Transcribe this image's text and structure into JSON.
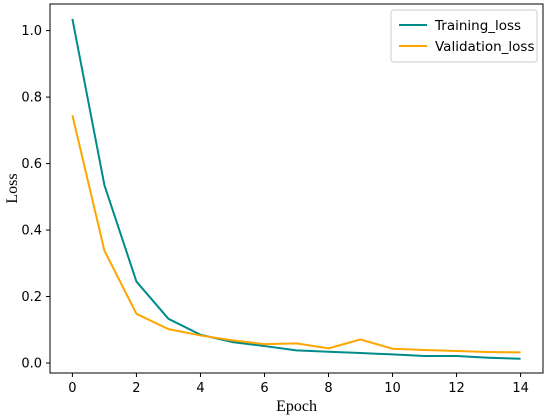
{
  "chart_data": {
    "type": "line",
    "title": "",
    "xlabel": "Epoch",
    "ylabel": "Loss",
    "x": [
      0,
      1,
      2,
      3,
      4,
      5,
      6,
      7,
      8,
      9,
      10,
      11,
      12,
      13,
      14
    ],
    "xlim": [
      -0.7,
      14.7
    ],
    "ylim": [
      -0.03,
      1.08
    ],
    "xticks": [
      0,
      2,
      4,
      6,
      8,
      10,
      12,
      14
    ],
    "yticks": [
      0.0,
      0.2,
      0.4,
      0.6,
      0.8,
      1.0
    ],
    "grid": false,
    "legend_position": "top-right",
    "series": [
      {
        "name": "Training_loss",
        "color": "#008b8b",
        "values": [
          1.035,
          0.535,
          0.245,
          0.133,
          0.085,
          0.063,
          0.051,
          0.038,
          0.034,
          0.03,
          0.026,
          0.021,
          0.021,
          0.016,
          0.013
        ]
      },
      {
        "name": "Validation_loss",
        "color": "#ffa500",
        "values": [
          0.745,
          0.338,
          0.148,
          0.102,
          0.083,
          0.068,
          0.057,
          0.059,
          0.044,
          0.071,
          0.043,
          0.039,
          0.036,
          0.033,
          0.032
        ]
      }
    ]
  }
}
